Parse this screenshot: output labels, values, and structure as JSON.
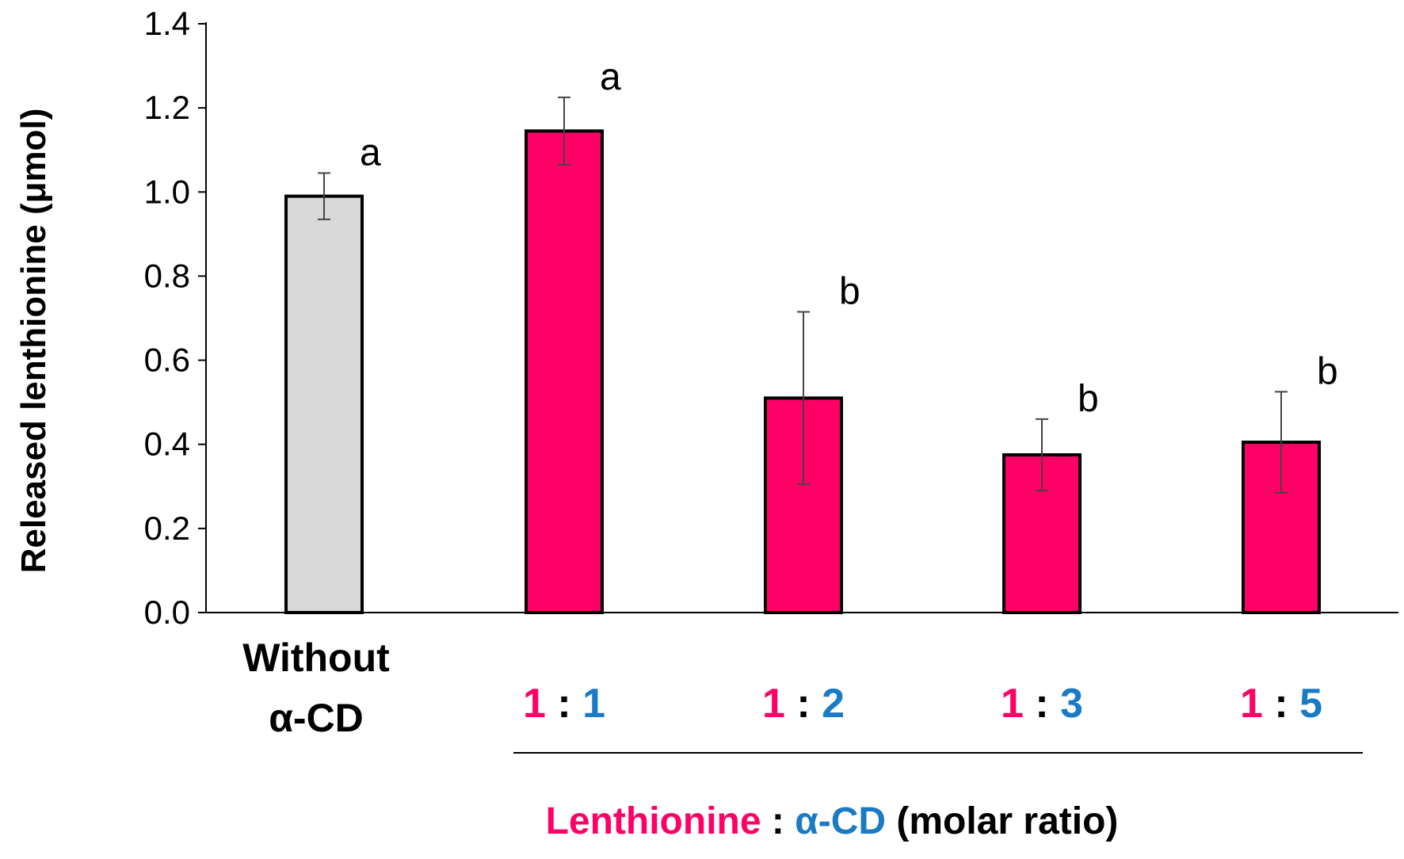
{
  "chart_data": {
    "type": "bar",
    "title": "",
    "ylabel": "Released lenthionine (μmol)",
    "ylim": [
      0,
      1.4
    ],
    "yticks": [
      "0.0",
      "0.2",
      "0.4",
      "0.6",
      "0.8",
      "1.0",
      "1.2",
      "1.4"
    ],
    "grid": false,
    "legend": "none",
    "categories": [
      {
        "label_lines": [
          "Without",
          "α-CD"
        ]
      },
      {
        "left": "1",
        "sep": " : ",
        "right": "1"
      },
      {
        "left": "1",
        "sep": " : ",
        "right": "2"
      },
      {
        "left": "1",
        "sep": " : ",
        "right": "3"
      },
      {
        "left": "1",
        "sep": " : ",
        "right": "5"
      }
    ],
    "values": [
      0.99,
      1.145,
      0.51,
      0.375,
      0.405
    ],
    "errors": [
      0.055,
      0.08,
      0.205,
      0.085,
      0.12
    ],
    "significance": [
      "a",
      "a",
      "b",
      "b",
      "b"
    ],
    "group_label": {
      "part1": "Lenthionine",
      "sep": " : ",
      "part2": "α-CD",
      "part3": " (molar ratio)"
    },
    "colors": {
      "control_bar": "#d9d9d9",
      "treatment_bar": "#ff0066",
      "lenthionine_text": "#ff0066",
      "cd_text": "#1a7ac4",
      "text": "#000000"
    }
  }
}
